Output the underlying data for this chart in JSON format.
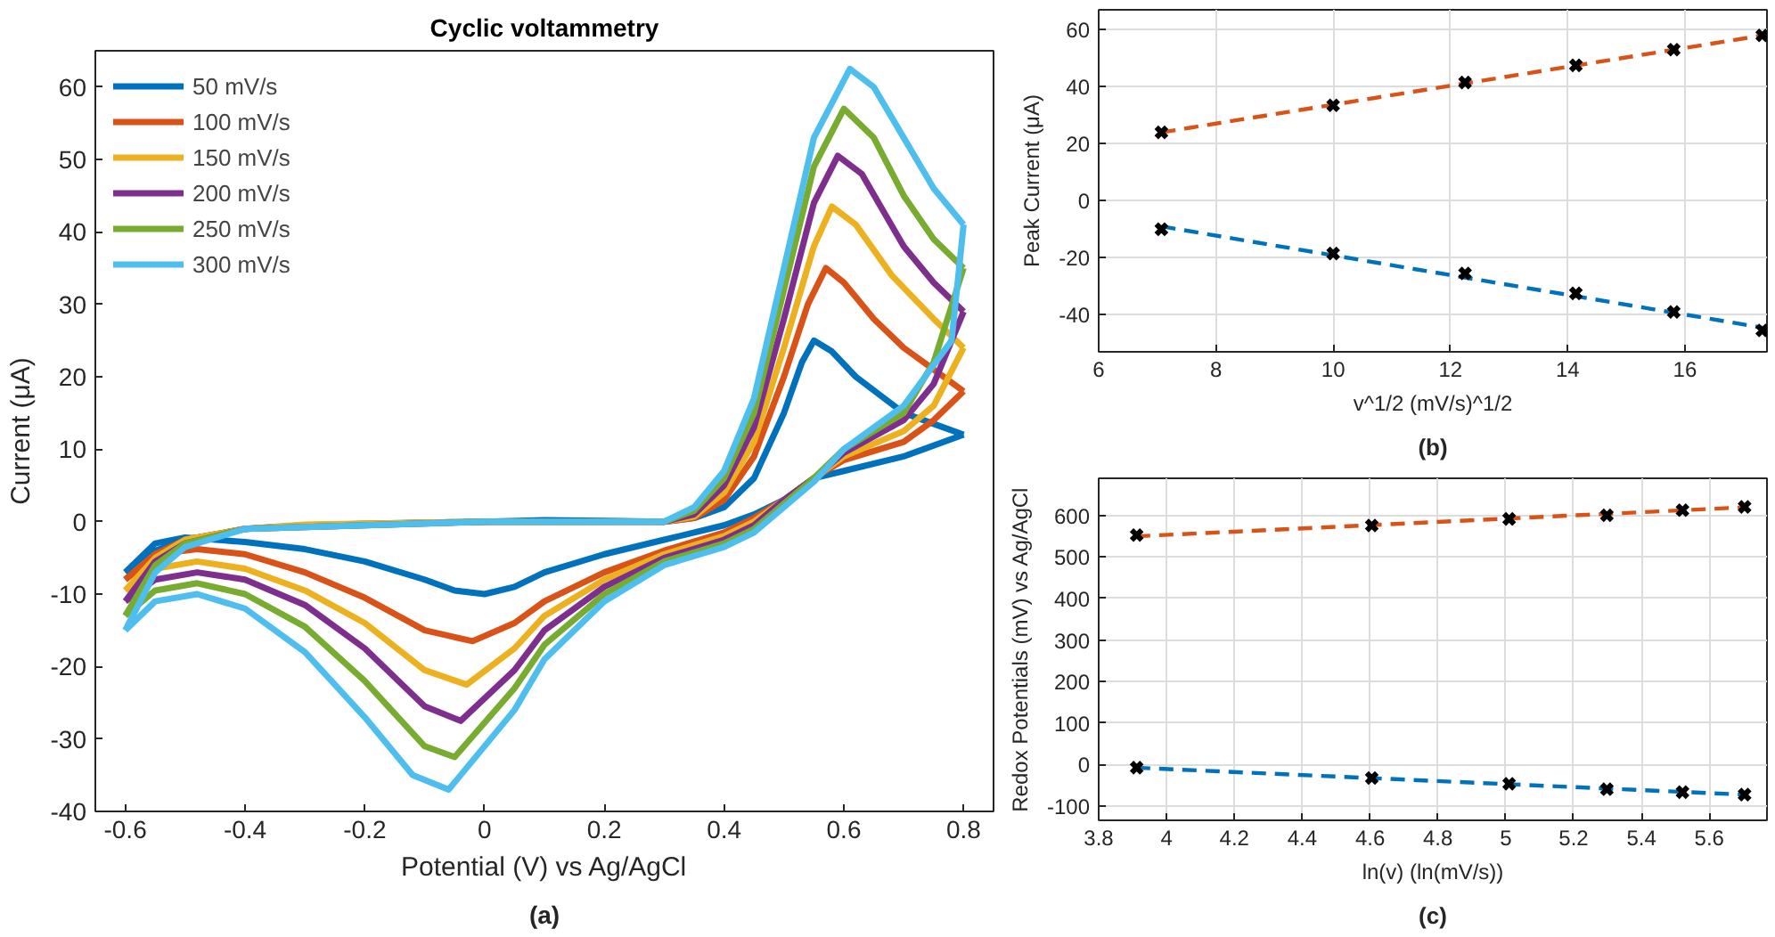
{
  "chart_data": [
    {
      "type": "line",
      "title": "Cyclic voltammetry",
      "xlabel": "Potential (V) vs Ag/AgCl",
      "ylabel": "Current (μA)",
      "annotations": [
        "(a)"
      ],
      "xlim": [
        -0.65,
        0.85
      ],
      "ylim": [
        -40,
        65
      ],
      "xticks": [
        -0.6,
        -0.4,
        -0.2,
        0,
        0.2,
        0.4,
        0.6,
        0.8
      ],
      "yticks": [
        -40,
        -30,
        -20,
        -10,
        0,
        10,
        20,
        30,
        40,
        50,
        60
      ],
      "grid": false,
      "legend": "top left",
      "series": [
        {
          "name": "50 mV/s",
          "color": "#0072bd",
          "x": [
            -0.6,
            -0.55,
            -0.5,
            -0.4,
            -0.3,
            -0.2,
            0,
            0.1,
            0.2,
            0.3,
            0.35,
            0.4,
            0.45,
            0.5,
            0.53,
            0.55,
            0.58,
            0.62,
            0.7,
            0.75,
            0.8
          ],
          "values": [
            -7,
            -4,
            -2.5,
            -1,
            -0.5,
            -0.3,
            0,
            0.2,
            0.1,
            0,
            0.5,
            2,
            6,
            15,
            22,
            25,
            23.5,
            20,
            15,
            13.5,
            12
          ]
        },
        {
          "color": "#0072bd",
          "x": [
            -0.6,
            -0.55,
            -0.5,
            -0.4,
            -0.3,
            -0.2,
            -0.1,
            -0.05,
            0,
            0.05,
            0.1,
            0.2,
            0.3,
            0.4,
            0.45,
            0.5,
            0.55,
            0.6,
            0.7,
            0.8
          ],
          "values": [
            -7,
            -3,
            -2.2,
            -2.8,
            -3.8,
            -5.5,
            -8,
            -9.5,
            -10,
            -9,
            -7,
            -4.5,
            -2.5,
            -0.5,
            1,
            3,
            6,
            7,
            9,
            12
          ]
        },
        {
          "name": "100 mV/s",
          "color": "#d95319",
          "x": [
            -0.6,
            -0.55,
            -0.5,
            -0.4,
            -0.3,
            0,
            0.3,
            0.35,
            0.4,
            0.45,
            0.5,
            0.54,
            0.57,
            0.6,
            0.65,
            0.7,
            0.75,
            0.8
          ],
          "values": [
            -8,
            -4.5,
            -2.5,
            -1,
            -0.5,
            0,
            0,
            0.5,
            3,
            9,
            20,
            30,
            35,
            33,
            28,
            24,
            21,
            18
          ]
        },
        {
          "color": "#d95319",
          "x": [
            -0.6,
            -0.55,
            -0.48,
            -0.4,
            -0.3,
            -0.2,
            -0.1,
            -0.02,
            0.05,
            0.1,
            0.2,
            0.3,
            0.4,
            0.45,
            0.5,
            0.55,
            0.6,
            0.7,
            0.75,
            0.8
          ],
          "values": [
            -8,
            -4.5,
            -3.8,
            -4.5,
            -7,
            -10.5,
            -15,
            -16.5,
            -14,
            -11,
            -7,
            -4,
            -1.5,
            0.5,
            3,
            6,
            8.5,
            11,
            14,
            18
          ]
        },
        {
          "name": "150 mV/s",
          "color": "#edb120",
          "x": [
            -0.6,
            -0.55,
            -0.5,
            -0.4,
            -0.3,
            0,
            0.3,
            0.35,
            0.4,
            0.45,
            0.5,
            0.55,
            0.58,
            0.62,
            0.68,
            0.75,
            0.8
          ],
          "values": [
            -9.5,
            -5,
            -2.5,
            -1,
            -0.4,
            0,
            0,
            0.7,
            4,
            11,
            24,
            38,
            43.5,
            41,
            34,
            28,
            24
          ]
        },
        {
          "color": "#edb120",
          "x": [
            -0.6,
            -0.55,
            -0.48,
            -0.4,
            -0.3,
            -0.2,
            -0.1,
            -0.03,
            0.05,
            0.1,
            0.2,
            0.3,
            0.4,
            0.45,
            0.5,
            0.55,
            0.6,
            0.7,
            0.75,
            0.8
          ],
          "values": [
            -9.5,
            -6.5,
            -5.5,
            -6.5,
            -9.5,
            -14,
            -20.5,
            -22.5,
            -17.5,
            -13,
            -8,
            -4.5,
            -2,
            0,
            3,
            6,
            9,
            12.5,
            16,
            24
          ]
        },
        {
          "name": "200 mV/s",
          "color": "#7e2f8e",
          "x": [
            -0.6,
            -0.55,
            -0.5,
            -0.4,
            0,
            0.3,
            0.35,
            0.4,
            0.45,
            0.5,
            0.55,
            0.59,
            0.63,
            0.7,
            0.75,
            0.8
          ],
          "values": [
            -11,
            -5.5,
            -3,
            -1,
            0,
            0,
            1,
            5,
            13,
            28,
            44,
            50.5,
            48,
            38,
            33,
            29
          ]
        },
        {
          "color": "#7e2f8e",
          "x": [
            -0.6,
            -0.55,
            -0.48,
            -0.4,
            -0.3,
            -0.2,
            -0.1,
            -0.04,
            0.05,
            0.1,
            0.2,
            0.3,
            0.4,
            0.45,
            0.5,
            0.55,
            0.6,
            0.7,
            0.75,
            0.8
          ],
          "values": [
            -11,
            -8,
            -7,
            -8,
            -11.5,
            -17.5,
            -25.5,
            -27.5,
            -20.5,
            -15,
            -9,
            -5,
            -2.5,
            -0.5,
            3,
            6,
            9.5,
            14,
            19,
            29
          ]
        },
        {
          "name": "250 mV/s",
          "color": "#77ac30",
          "x": [
            -0.6,
            -0.55,
            -0.5,
            -0.4,
            0,
            0.3,
            0.35,
            0.4,
            0.45,
            0.5,
            0.55,
            0.6,
            0.65,
            0.7,
            0.75,
            0.8
          ],
          "values": [
            -13,
            -6,
            -3,
            -1,
            0,
            0,
            1.5,
            6,
            15,
            32,
            49,
            57,
            53,
            45,
            39,
            35
          ]
        },
        {
          "color": "#77ac30",
          "x": [
            -0.6,
            -0.55,
            -0.48,
            -0.4,
            -0.3,
            -0.2,
            -0.1,
            -0.05,
            0.05,
            0.1,
            0.2,
            0.3,
            0.4,
            0.45,
            0.5,
            0.55,
            0.6,
            0.7,
            0.75,
            0.8
          ],
          "values": [
            -13,
            -9.5,
            -8.5,
            -10,
            -14.5,
            -22,
            -31,
            -32.5,
            -23,
            -17,
            -10,
            -5.5,
            -3,
            -1,
            2.5,
            6,
            10,
            15,
            22,
            35
          ]
        },
        {
          "name": "300 mV/s",
          "color": "#4dbeee",
          "x": [
            -0.6,
            -0.55,
            -0.5,
            -0.4,
            0,
            0.3,
            0.35,
            0.4,
            0.45,
            0.5,
            0.55,
            0.61,
            0.65,
            0.7,
            0.75,
            0.8
          ],
          "values": [
            -15,
            -7,
            -3.5,
            -1,
            0,
            0,
            2,
            7,
            17,
            35,
            53,
            62.5,
            60,
            53,
            46,
            41
          ]
        },
        {
          "color": "#4dbeee",
          "x": [
            -0.6,
            -0.55,
            -0.48,
            -0.4,
            -0.3,
            -0.2,
            -0.12,
            -0.06,
            0.05,
            0.1,
            0.2,
            0.3,
            0.4,
            0.45,
            0.5,
            0.55,
            0.6,
            0.7,
            0.78,
            0.8
          ],
          "values": [
            -15,
            -11,
            -10,
            -12,
            -18,
            -27,
            -35,
            -37,
            -26,
            -19,
            -11,
            -6,
            -3.5,
            -1.5,
            2,
            5.5,
            10,
            16,
            25,
            41
          ]
        }
      ]
    },
    {
      "type": "scatter",
      "xlabel": "v^1/2 (mV/s)^1/2",
      "ylabel": "Peak Current (μA)",
      "annotations": [
        "(b)"
      ],
      "xlim": [
        6,
        17.4
      ],
      "ylim": [
        -53,
        67
      ],
      "xticks": [
        6,
        8,
        10,
        12,
        14,
        16
      ],
      "yticks": [
        -40,
        -20,
        0,
        20,
        40,
        60
      ],
      "grid": true,
      "legend": false,
      "series": [
        {
          "type": "line",
          "color": "#d95319",
          "line_style": "dashed",
          "x": [
            7.07,
            17.32
          ],
          "values": [
            24,
            58
          ]
        },
        {
          "type": "line",
          "color": "#0072bd",
          "line_style": "dashed",
          "x": [
            7.07,
            17.32
          ],
          "values": [
            -9,
            -44.5
          ]
        },
        {
          "type": "scatter",
          "color": "#000000",
          "marker": "cross",
          "x": [
            7.07,
            10,
            12.25,
            14.14,
            15.81,
            17.32
          ],
          "values": [
            24,
            33.5,
            41.5,
            47.5,
            53,
            58
          ]
        },
        {
          "type": "scatter",
          "color": "#000000",
          "marker": "cross",
          "x": [
            7.07,
            10,
            12.25,
            14.14,
            15.81,
            17.32
          ],
          "values": [
            -10,
            -18.5,
            -25.5,
            -32.5,
            -39,
            -45.5
          ]
        }
      ]
    },
    {
      "type": "scatter",
      "xlabel": "ln(v) (ln(mV/s))",
      "ylabel": "Redox Potentials (mV) vs Ag/AgCl",
      "annotations": [
        "(c)"
      ],
      "xlim": [
        3.8,
        5.77
      ],
      "ylim": [
        -135,
        690
      ],
      "xticks": [
        3.8,
        4,
        4.2,
        4.4,
        4.6,
        4.8,
        5,
        5.2,
        5.4,
        5.6
      ],
      "yticks": [
        -100,
        0,
        100,
        200,
        300,
        400,
        500,
        600
      ],
      "grid": true,
      "legend": false,
      "series": [
        {
          "type": "line",
          "color": "#d95319",
          "line_style": "dashed",
          "x": [
            3.91,
            5.7
          ],
          "values": [
            550,
            620
          ]
        },
        {
          "type": "line",
          "color": "#0072bd",
          "line_style": "dashed",
          "x": [
            3.91,
            5.7
          ],
          "values": [
            -8,
            -73
          ]
        },
        {
          "type": "scatter",
          "color": "#000000",
          "marker": "cross",
          "x": [
            3.912,
            4.605,
            5.01,
            5.298,
            5.521,
            5.704
          ],
          "values": [
            553,
            576,
            592,
            601,
            613,
            621
          ]
        },
        {
          "type": "scatter",
          "color": "#000000",
          "marker": "cross",
          "x": [
            3.912,
            4.605,
            5.01,
            5.298,
            5.521,
            5.704
          ],
          "values": [
            -8,
            -33,
            -47,
            -60,
            -67,
            -73
          ]
        }
      ]
    }
  ]
}
